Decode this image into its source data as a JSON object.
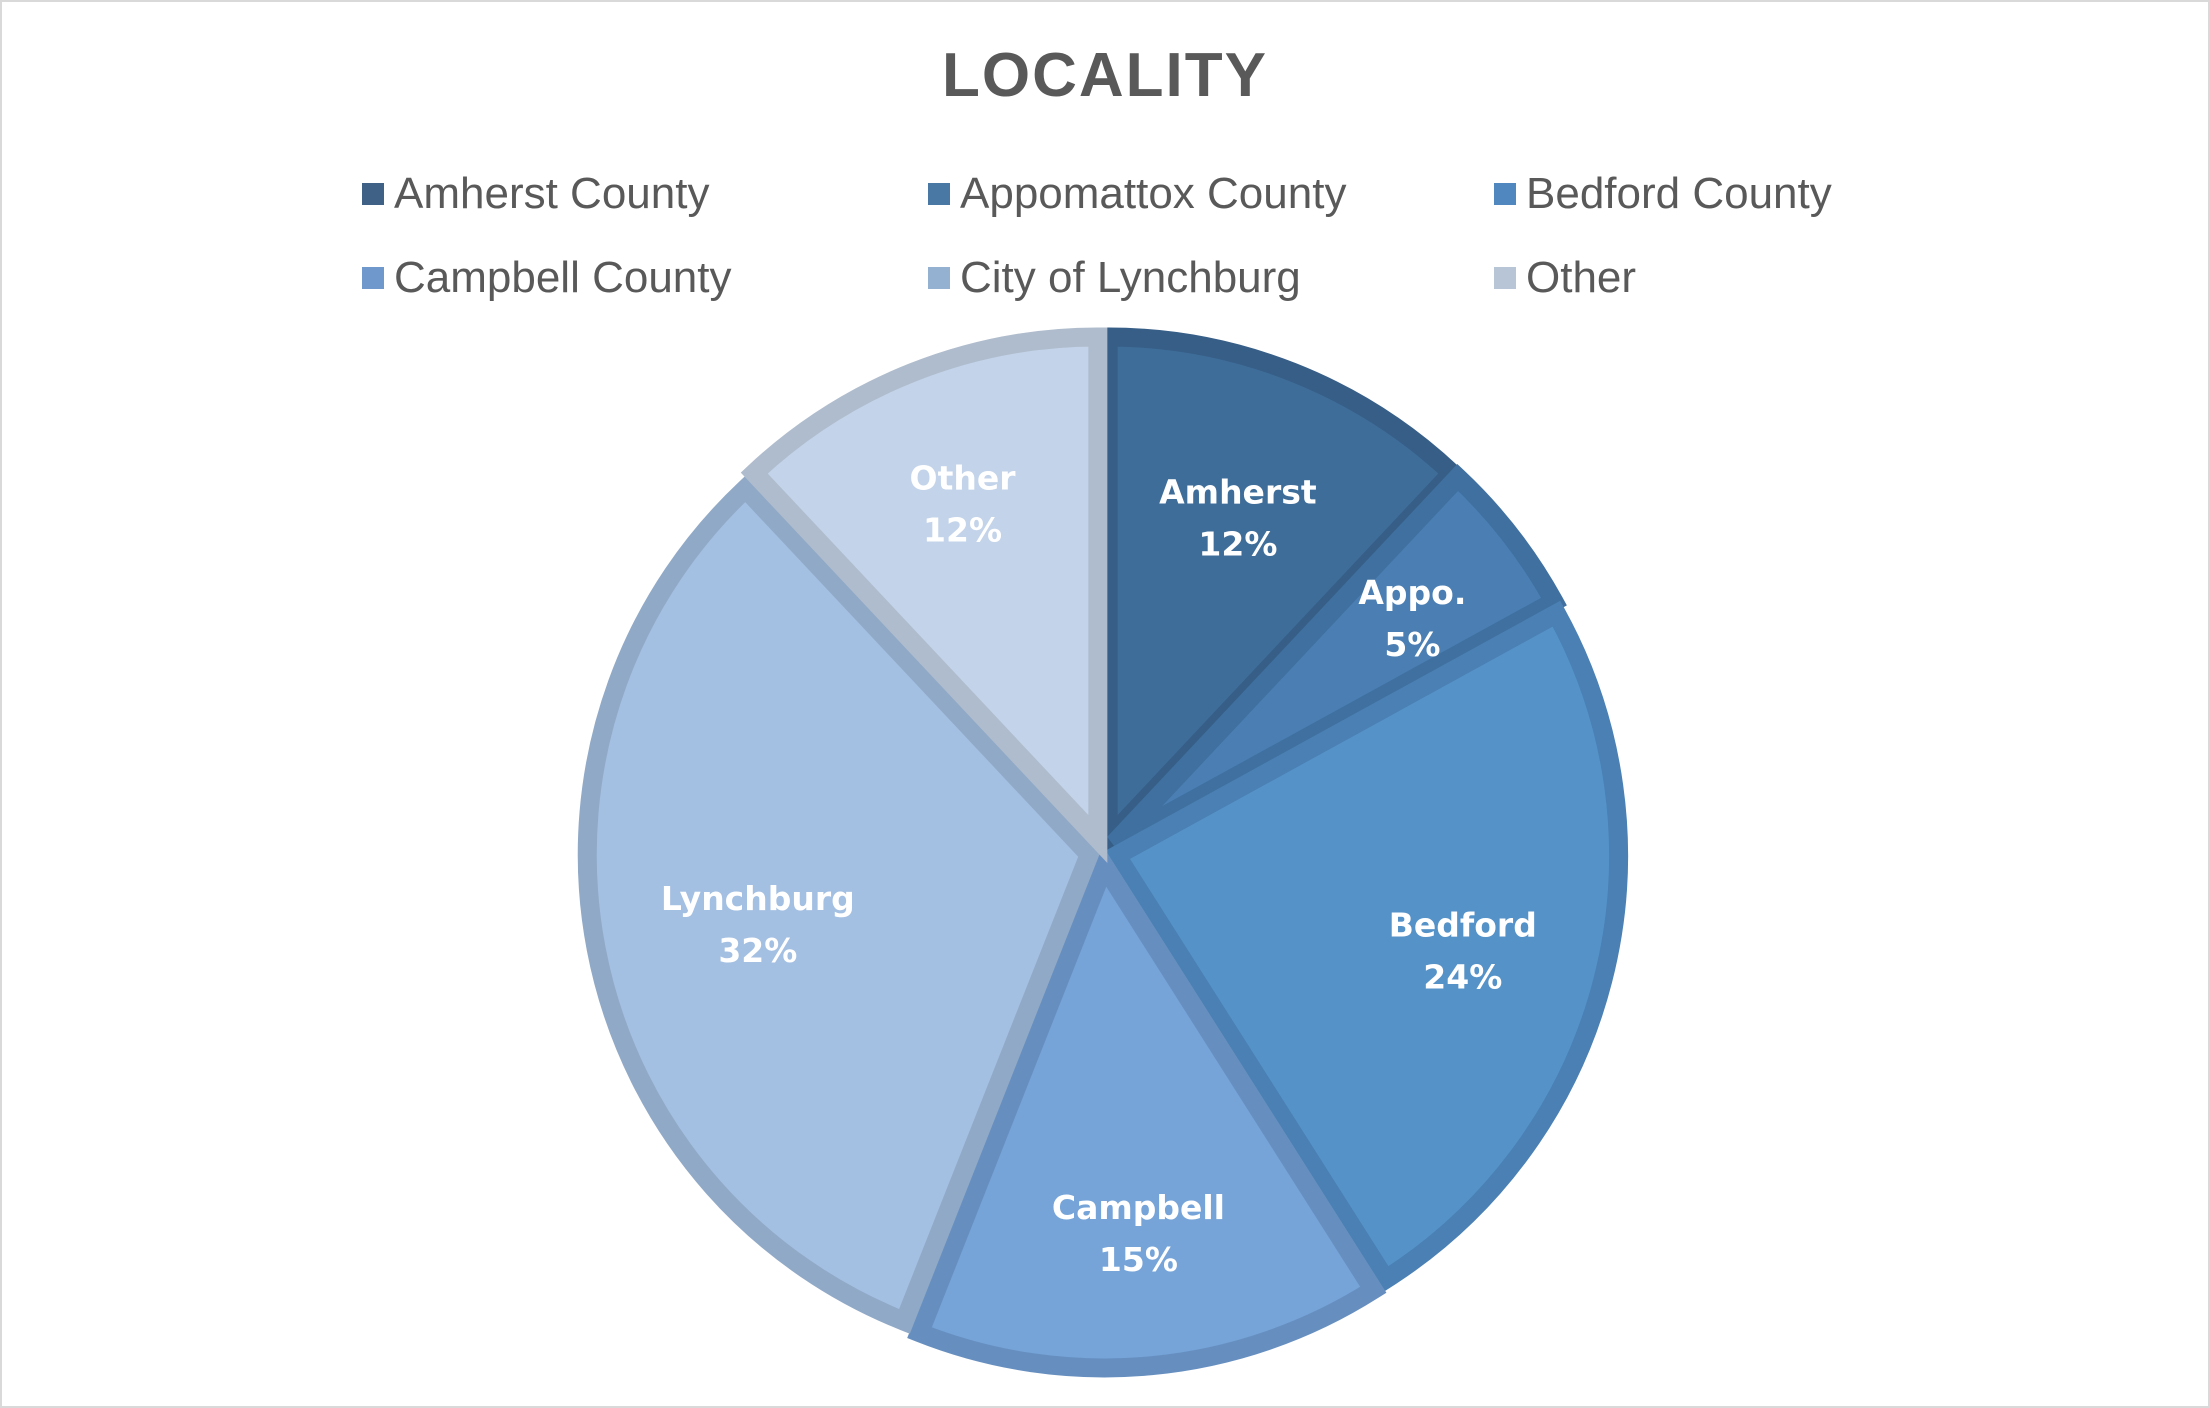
{
  "chart_data": {
    "type": "pie",
    "title": "LOCALITY",
    "categories": [
      "Amherst County",
      "Appomattox County",
      "Bedford County",
      "Campbell County",
      "City of Lynchburg",
      "Other"
    ],
    "values": [
      12,
      5,
      24,
      15,
      32,
      12
    ],
    "unit": "%",
    "slice_labels": [
      {
        "name": "Amherst",
        "pct": "12%"
      },
      {
        "name": "Appo.",
        "pct": "5%"
      },
      {
        "name": "Bedford",
        "pct": "24%"
      },
      {
        "name": "Campbell",
        "pct": "15%"
      },
      {
        "name": "Lynchburg",
        "pct": "32%"
      },
      {
        "name": "Other",
        "pct": "12%"
      }
    ],
    "colors": [
      "#3f6d99",
      "#4b7fb3",
      "#5592c8",
      "#76a4d8",
      "#a3bfe2",
      "#c3d3e9"
    ],
    "border_colors": [
      "#365e87",
      "#3f70a0",
      "#4a80b3",
      "#668fc0",
      "#90a9c7",
      "#afbccd"
    ],
    "legend_colors": [
      "#3f6185",
      "#4a78a5",
      "#5187bf",
      "#6f99cd",
      "#94b1d2",
      "#b7c5d6"
    ],
    "legend_position": "top",
    "start_angle_deg": 0,
    "direction": "clockwise"
  }
}
